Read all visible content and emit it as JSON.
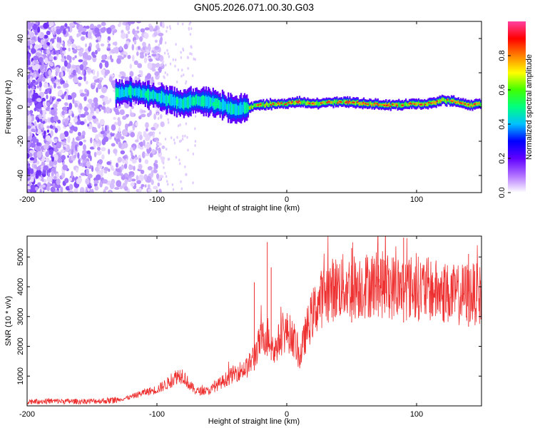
{
  "title": "GN05.2026.071.00.30.G03",
  "chart_data": [
    {
      "type": "heatmap",
      "xlabel": "Height of straight line (km)",
      "ylabel": "Frequency (Hz)",
      "xlim": [
        -200,
        150
      ],
      "ylim": [
        -50,
        50
      ],
      "xticks": [
        -200,
        -100,
        0,
        100
      ],
      "yticks": [
        -40,
        -20,
        0,
        20,
        40
      ],
      "colorbar": {
        "label": "Normalized spectral amplitude",
        "range": [
          0,
          1
        ],
        "ticks": [
          "0.0",
          "0.2",
          "0.4",
          "0.6",
          "0.8"
        ],
        "colors": [
          "#ffffff",
          "#b070ff",
          "#6000ff",
          "#0000ff",
          "#00c0ff",
          "#00ff80",
          "#40ff00",
          "#ffff00",
          "#ff8000",
          "#ff0000",
          "#ff40a0"
        ]
      },
      "ridge": {
        "x": [
          -130,
          -120,
          -110,
          -100,
          -90,
          -80,
          -70,
          -60,
          -50,
          -40,
          -30,
          -20,
          -10,
          0,
          10,
          20,
          40,
          60,
          80,
          100,
          110,
          120,
          130,
          140,
          150
        ],
        "y": [
          8,
          9,
          8,
          6,
          4,
          2,
          4,
          3,
          1,
          -2,
          0,
          1,
          2,
          2,
          3,
          2,
          3,
          2,
          1,
          2,
          2,
          4,
          3,
          1,
          2
        ]
      }
    },
    {
      "type": "line",
      "xlabel": "Height of straight line (km)",
      "ylabel": "SNR (10 * v/v)",
      "xlim": [
        -200,
        150
      ],
      "ylim": [
        0,
        5700
      ],
      "xticks": [
        -200,
        -100,
        0,
        100
      ],
      "yticks": [
        1000,
        2000,
        3000,
        4000,
        5000
      ],
      "color": "#ee3030",
      "series": [
        {
          "name": "SNR",
          "x": [
            -200,
            -180,
            -160,
            -140,
            -130,
            -120,
            -110,
            -100,
            -90,
            -85,
            -80,
            -75,
            -70,
            -60,
            -50,
            -40,
            -35,
            -30,
            -25,
            -20,
            -15,
            -12,
            -10,
            -5,
            0,
            5,
            10,
            15,
            20,
            25,
            30,
            40,
            50,
            60,
            70,
            80,
            90,
            100,
            110,
            120,
            130,
            140,
            150
          ],
          "y": [
            150,
            160,
            150,
            170,
            200,
            300,
            450,
            550,
            800,
            1000,
            1050,
            700,
            500,
            500,
            800,
            1100,
            1200,
            1300,
            1700,
            2200,
            2400,
            2200,
            1800,
            2300,
            2500,
            2300,
            1600,
            2500,
            3100,
            3500,
            3800,
            4000,
            4000,
            4050,
            4100,
            4000,
            4000,
            3950,
            3900,
            3800,
            3700,
            3800,
            3700
          ]
        }
      ]
    }
  ]
}
